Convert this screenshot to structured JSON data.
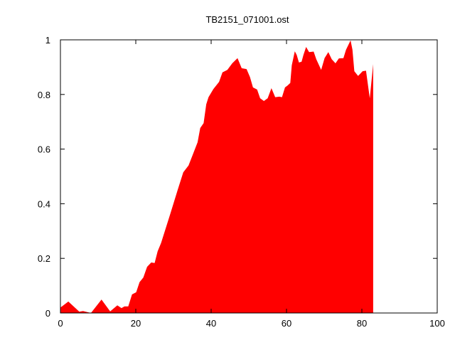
{
  "chart_data": {
    "type": "area",
    "title": "TB2151_071001.ost",
    "xlabel": "",
    "ylabel": "",
    "xlim": [
      0,
      100
    ],
    "ylim": [
      0,
      1
    ],
    "x_ticks": [
      0,
      20,
      40,
      60,
      80,
      100
    ],
    "y_ticks": [
      0,
      0.2,
      0.4,
      0.6,
      0.8,
      1
    ],
    "y_tick_labels": [
      "0",
      "0.2",
      "0.4",
      "0.6",
      "0.8",
      "1"
    ],
    "x_tick_labels": [
      "0",
      "20",
      "40",
      "60",
      "80",
      "100"
    ],
    "grid": false,
    "legend": "none",
    "fill_color": "#ff0000",
    "series": [
      {
        "x": [
          0,
          2.1,
          5,
          6,
          8.1,
          10.9,
          13.2,
          15.1,
          16.2,
          17,
          18,
          19,
          20.1,
          21,
          22,
          23,
          24.1,
          25,
          25.8,
          26.7,
          29.2,
          31.1,
          32.6,
          34,
          35.3,
          36.4,
          37.1,
          38,
          38.7,
          39.3,
          40.6,
          42.1,
          43,
          44.3,
          45.6,
          47,
          48.1,
          49.4,
          50.3,
          51.1,
          52.2,
          53,
          54,
          55,
          56,
          57,
          58.1,
          58.8,
          59.6,
          60.3,
          61,
          61.4,
          62.2,
          62.7,
          63.3,
          64,
          64.5,
          65.2,
          66,
          67.2,
          67.9,
          69.2,
          70.1,
          71.1,
          72,
          73,
          73.9,
          75.1,
          75.8,
          77,
          77.5,
          78,
          79,
          80.2,
          81.1,
          82.1,
          83
        ],
        "y": [
          0.02,
          0.042,
          0.005,
          0.007,
          0.0,
          0.049,
          0.006,
          0.028,
          0.018,
          0.024,
          0.024,
          0.068,
          0.076,
          0.113,
          0.13,
          0.169,
          0.185,
          0.183,
          0.226,
          0.256,
          0.365,
          0.45,
          0.515,
          0.54,
          0.586,
          0.625,
          0.677,
          0.695,
          0.764,
          0.79,
          0.82,
          0.846,
          0.881,
          0.89,
          0.914,
          0.933,
          0.896,
          0.893,
          0.864,
          0.826,
          0.818,
          0.786,
          0.776,
          0.786,
          0.823,
          0.79,
          0.792,
          0.79,
          0.826,
          0.833,
          0.842,
          0.907,
          0.958,
          0.945,
          0.917,
          0.92,
          0.945,
          0.974,
          0.955,
          0.957,
          0.929,
          0.89,
          0.933,
          0.955,
          0.929,
          0.914,
          0.932,
          0.933,
          0.964,
          0.998,
          0.964,
          0.885,
          0.868,
          0.885,
          0.887,
          0.786,
          0.911
        ]
      }
    ]
  }
}
